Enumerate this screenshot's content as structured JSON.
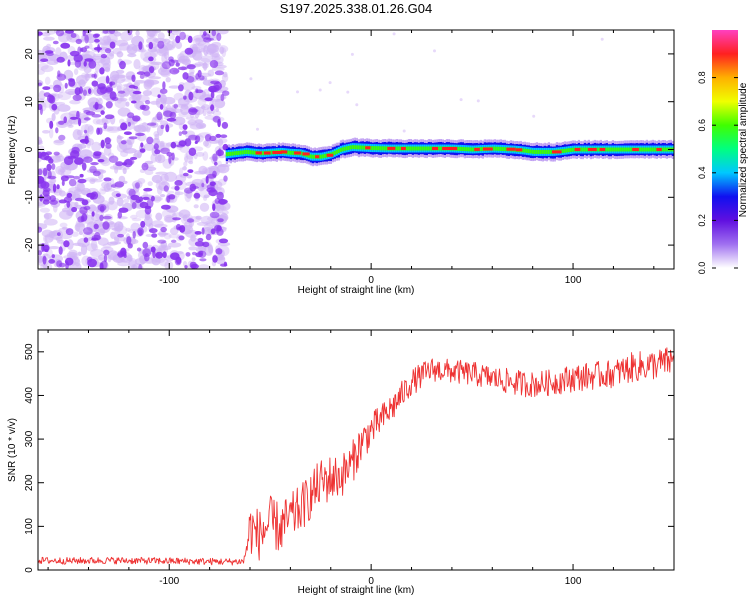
{
  "figure_title": "S197.2025.338.01.26.G04",
  "colors": {
    "snr_line": "#ee3333",
    "spec_points": "#8833ee",
    "spec_light": "#cfb3f5",
    "colorbar_stops": [
      "#ffffff",
      "#a070f0",
      "#6010e0",
      "#1010f0",
      "#00c8ff",
      "#00ff80",
      "#40ff00",
      "#f0ff00",
      "#ffb000",
      "#ff2020",
      "#ff40c0"
    ]
  },
  "chart_data": [
    {
      "type": "heatmap",
      "title": "S197.2025.338.01.26.G04",
      "xlabel": "Height of straight line (km)",
      "ylabel": "Frequency (Hz)",
      "xlim": [
        -165,
        150
      ],
      "ylim": [
        -25,
        25
      ],
      "x_ticks": [
        -100,
        0,
        100
      ],
      "y_ticks": [
        -20,
        -10,
        0,
        10,
        20
      ],
      "noise_region_x": [
        -165,
        -72
      ],
      "signal_track": {
        "x": [
          -72,
          -62,
          -55,
          -45,
          -40,
          -35,
          -30,
          -25,
          -20,
          -15,
          -10,
          0,
          10,
          20,
          30,
          40,
          50,
          60,
          70,
          75,
          80,
          85,
          90,
          95,
          100,
          110,
          120,
          130,
          140,
          150
        ],
        "freq": [
          -1.0,
          -0.5,
          -0.8,
          -0.5,
          -0.7,
          -0.8,
          -1.5,
          -1.5,
          -1.0,
          0.0,
          0.5,
          0.3,
          0.2,
          0.2,
          0.2,
          0.2,
          0.0,
          0.2,
          0.0,
          -0.2,
          -0.5,
          -0.5,
          -0.5,
          -0.3,
          0.0,
          0.0,
          0.0,
          0.0,
          0.0,
          0.0
        ]
      },
      "colorbar": {
        "label": "Normalized spectral amplitude",
        "range": [
          0.0,
          1.0
        ],
        "ticks": [
          "0.0",
          "0.2",
          "0.4",
          "0.6",
          "0.8"
        ],
        "tick_values": [
          0.0,
          0.2,
          0.4,
          0.6,
          0.8
        ]
      }
    },
    {
      "type": "line",
      "xlabel": "Height of straight line (km)",
      "ylabel": "SNR (10 * v/v)",
      "xlim": [
        -165,
        150
      ],
      "ylim": [
        0,
        550
      ],
      "x_ticks": [
        -100,
        0,
        100
      ],
      "y_ticks": [
        0,
        100,
        200,
        300,
        400,
        500
      ],
      "series": [
        {
          "name": "SNR",
          "x": [
            -165,
            -150,
            -130,
            -110,
            -90,
            -70,
            -63,
            -60,
            -55,
            -50,
            -45,
            -40,
            -35,
            -30,
            -25,
            -20,
            -15,
            -10,
            -5,
            0,
            5,
            10,
            15,
            20,
            25,
            30,
            40,
            50,
            60,
            70,
            80,
            90,
            100,
            110,
            120,
            130,
            140,
            150
          ],
          "values": [
            22,
            21,
            22,
            21,
            20,
            19,
            20,
            95,
            80,
            110,
            95,
            120,
            140,
            170,
            200,
            210,
            215,
            240,
            290,
            320,
            345,
            370,
            400,
            430,
            445,
            460,
            455,
            450,
            440,
            430,
            425,
            430,
            440,
            445,
            450,
            465,
            470,
            480
          ],
          "noise_amplitude": [
            8,
            8,
            8,
            8,
            8,
            8,
            8,
            60,
            60,
            60,
            60,
            55,
            55,
            55,
            55,
            55,
            50,
            50,
            45,
            40,
            35,
            35,
            32,
            30,
            30,
            28,
            28,
            28,
            28,
            30,
            30,
            30,
            32,
            32,
            32,
            35,
            35,
            35
          ]
        }
      ]
    }
  ]
}
